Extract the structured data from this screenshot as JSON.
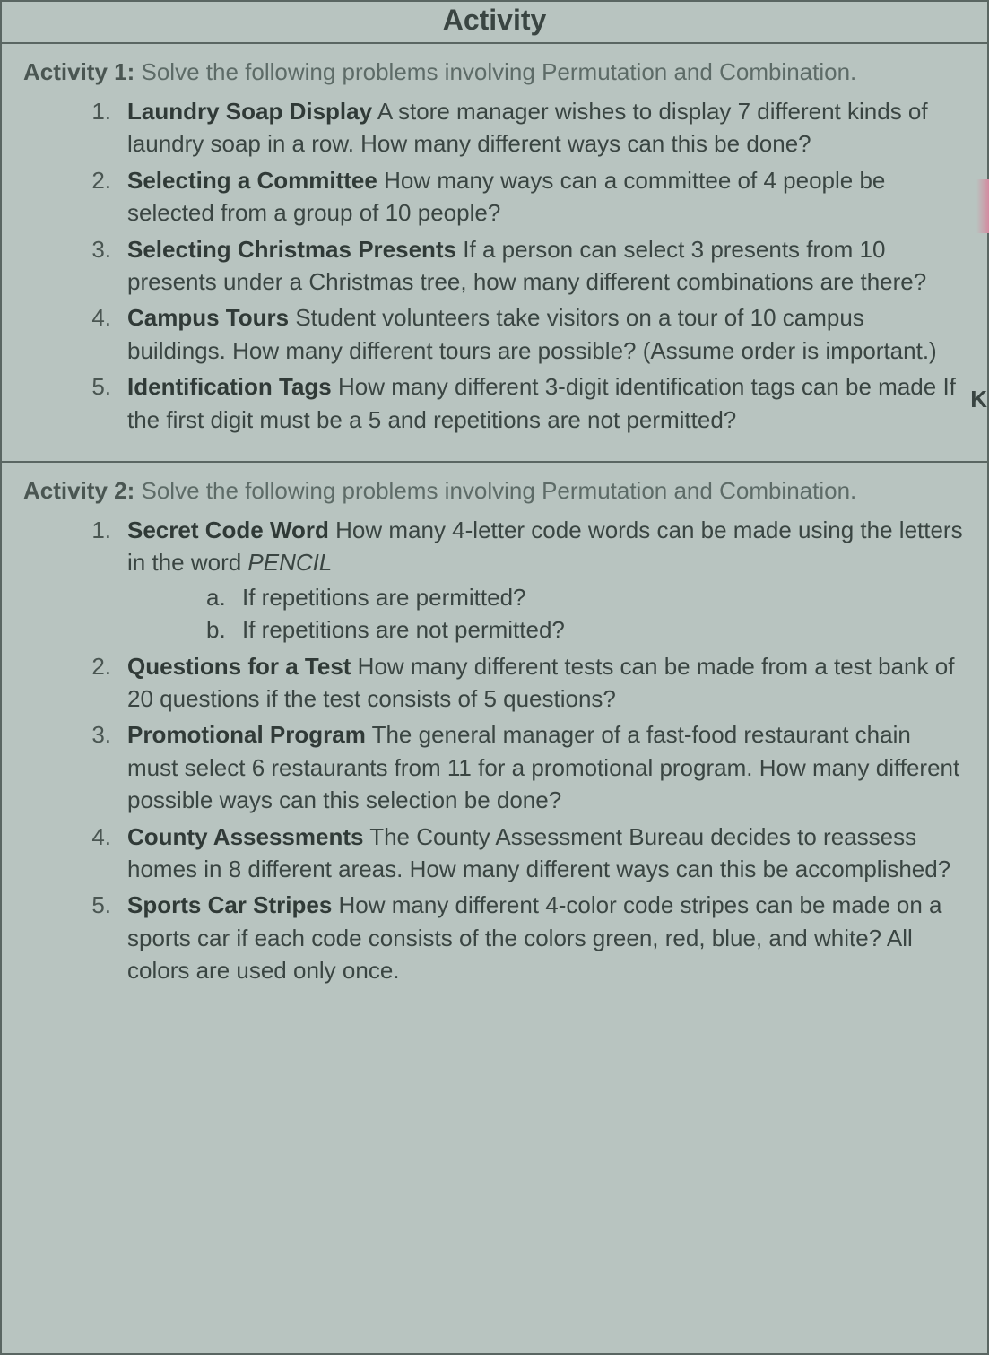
{
  "header": "Activity",
  "activity1": {
    "label": "Activity 1:",
    "intro": "Solve the following problems involving Permutation and Combination.",
    "problems": [
      {
        "num": "1.",
        "title": "Laundry Soap Display",
        "text": " A store manager wishes to display 7 different kinds of laundry soap in a row. How many different ways can this be done?"
      },
      {
        "num": "2.",
        "title": "Selecting a Committee",
        "text": " How many ways can a committee of 4 people be selected from a group of 10 people?"
      },
      {
        "num": "3.",
        "title": "Selecting Christmas Presents",
        "text": " If a person can select 3 presents from 10 presents under a Christmas tree, how many different combinations are there?"
      },
      {
        "num": "4.",
        "title": "Campus Tours",
        "text": " Student volunteers take visitors on a tour of 10 campus buildings. How many different tours are possible? (Assume order is important.)"
      },
      {
        "num": "5.",
        "title": "Identification Tags",
        "text": " How many different 3-digit identification tags can be made If the first digit must be a 5 and repetitions are not permitted?"
      }
    ]
  },
  "activity2": {
    "label": "Activity 2:",
    "intro": "Solve the following problems involving Permutation and Combination.",
    "problems": [
      {
        "num": "1.",
        "title": "Secret Code Word",
        "text_before": " How many 4-letter code words can be made using the letters in the word ",
        "italic_word": "PENCIL",
        "subs": [
          {
            "letter": "a.",
            "text": "If repetitions are permitted?"
          },
          {
            "letter": "b.",
            "text": "If repetitions are not permitted?"
          }
        ]
      },
      {
        "num": "2.",
        "title": "Questions for a Test",
        "text": " How many different tests can be made from a test bank of 20 questions if the test consists of 5 questions?"
      },
      {
        "num": "3.",
        "title": "Promotional Program",
        "text": " The general manager of a fast-food restaurant chain must select 6 restaurants from 11 for a promotional program. How many different possible ways can this selection be done?"
      },
      {
        "num": "4.",
        "title": "County Assessments",
        "text": " The County Assessment Bureau decides to reassess homes in 8 different areas. How many different ways can this be accomplished?"
      },
      {
        "num": "5.",
        "title": "Sports Car Stripes",
        "text": " How many different 4-color code stripes can be made on a sports car if each code consists of the colors green, red, blue, and white? All colors are used only once."
      }
    ]
  },
  "edge_letter": "K",
  "colors": {
    "background": "#b8c4c0",
    "border": "#5a6662",
    "text": "#3a4542",
    "muted_text": "#5d6b67",
    "bold_text": "#303a37"
  },
  "typography": {
    "header_fontsize": 32,
    "body_fontsize": 26,
    "line_height": 1.4,
    "font_family": "Arial"
  }
}
